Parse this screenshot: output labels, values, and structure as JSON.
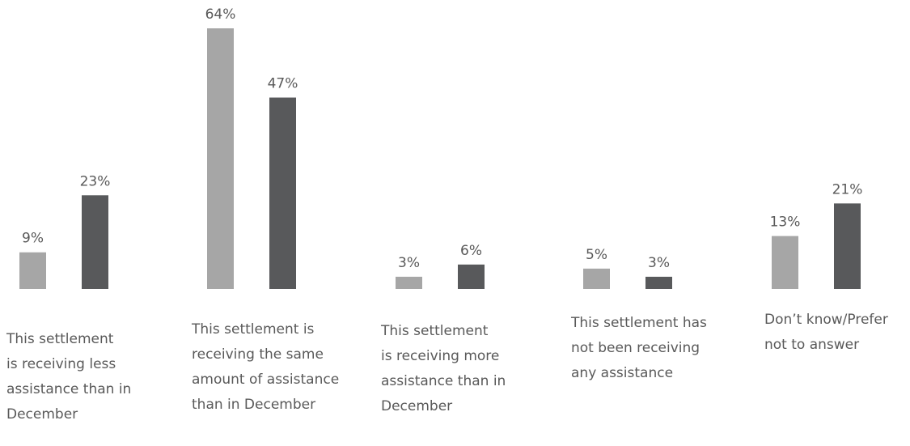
{
  "chart_data": {
    "type": "bar",
    "categories": [
      [
        "This settlement",
        "is receiving less",
        "assistance than in",
        "December"
      ],
      [
        "This settlement is",
        "receiving the same",
        "amount of assistance",
        "than in December"
      ],
      [
        "This settlement",
        "is receiving more",
        "assistance than in",
        "December"
      ],
      [
        "This settlement has",
        "not been receiving",
        "any assistance"
      ],
      [
        "Don’t know/Prefer",
        "not to answer"
      ]
    ],
    "series": [
      {
        "values": [
          9,
          64,
          3,
          5,
          13
        ],
        "labels": [
          "9%",
          "64%",
          "3%",
          "5%",
          "13%"
        ],
        "color": "#a6a6a6"
      },
      {
        "values": [
          23,
          47,
          6,
          3,
          21
        ],
        "labels": [
          "23%",
          "47%",
          "6%",
          "3%",
          "21%"
        ],
        "color": "#58595b"
      }
    ],
    "ylim": [
      0,
      64
    ],
    "grid": false,
    "legend": "none"
  }
}
